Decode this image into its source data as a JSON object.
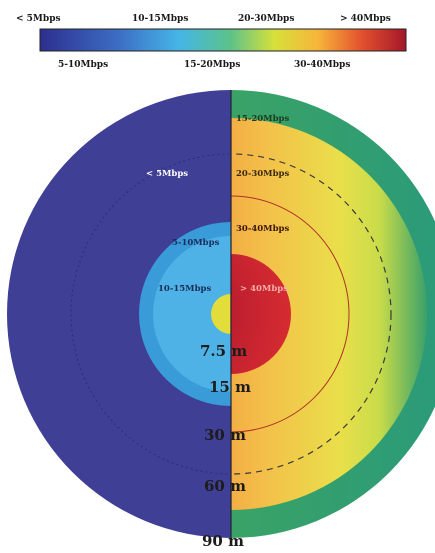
{
  "legend": {
    "top_labels": [
      "< 5Mbps",
      "10-15Mbps",
      "20-30Mbps",
      "> 40Mbps"
    ],
    "bottom_labels": [
      "5-10Mbps",
      "15-20Mbps",
      "30-40Mbps"
    ],
    "gradient_colors": [
      "#2d2f8e",
      "#3d6fc6",
      "#45b6e6",
      "#5cc28a",
      "#d7e03a",
      "#f6b53a",
      "#e2502e",
      "#a3172a"
    ]
  },
  "left_half": {
    "zones": [
      {
        "label": "< 5Mbps",
        "color": "#3f3f95"
      },
      {
        "label": "5-10Mbps",
        "color": "#3a9bd9"
      },
      {
        "label": "10-15Mbps",
        "color": "#4fb2e6"
      }
    ],
    "center_color": "#e2dd3a"
  },
  "right_half": {
    "zones": [
      {
        "label": "15-20Mbps",
        "color": "#4aa955"
      },
      {
        "label": "20-30Mbps",
        "color": "#f2c646"
      },
      {
        "label": "30-40Mbps",
        "color": "#e46a38"
      },
      {
        "label": "> 40Mbps",
        "color": "#b5182e"
      }
    ]
  },
  "distances": [
    "7.5 m",
    "15 m",
    "30 m",
    "60 m",
    "90 m"
  ]
}
